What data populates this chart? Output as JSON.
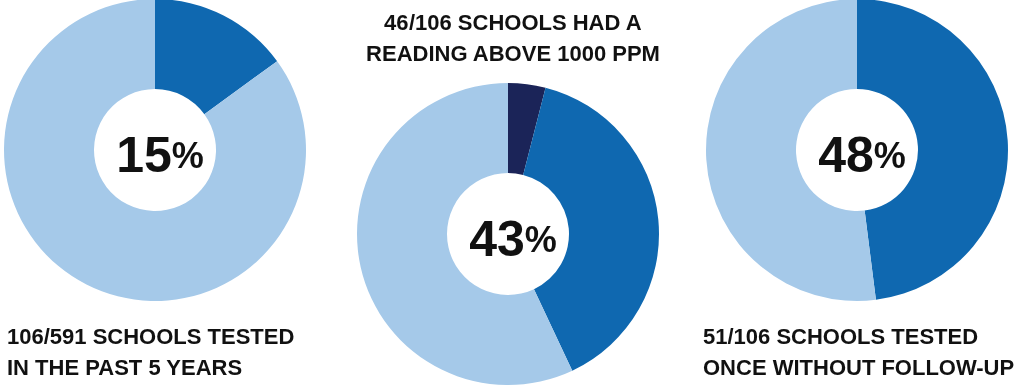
{
  "chart_data": [
    {
      "type": "donut",
      "title": "106/591 SCHOOLS TESTED\nIN THE PAST 5 YEARS",
      "annotations": [
        "15%"
      ],
      "categories": [
        null,
        null
      ],
      "values": [
        15,
        85
      ],
      "colors": [
        "#0f68b0",
        "#a5c9e9"
      ]
    },
    {
      "type": "donut",
      "title": "46/106 SCHOOLS HAD A\nREADING ABOVE 1000 PPM",
      "annotations": [
        "43%"
      ],
      "categories": [
        null,
        null,
        null
      ],
      "values": [
        4,
        39,
        57
      ],
      "colors": [
        "#1b2458",
        "#0f68b0",
        "#a5c9e9"
      ]
    },
    {
      "type": "donut",
      "title": "51/106 SCHOOLS TESTED\nONCE WITHOUT FOLLOW-UP",
      "annotations": [
        "48%"
      ],
      "categories": [
        null,
        null
      ],
      "values": [
        48,
        52
      ],
      "colors": [
        "#0f68b0",
        "#a5c9e9"
      ]
    }
  ]
}
